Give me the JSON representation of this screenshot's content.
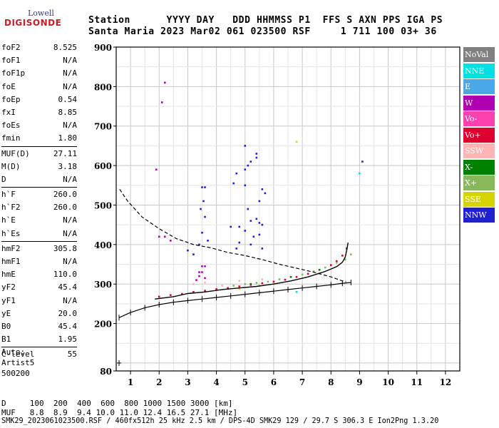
{
  "logo": {
    "top": "Lowell",
    "bottom": "DIGISONDE"
  },
  "header": {
    "line1": "Station      YYYY DAY   DDD HHMMSS P1  FFS S AXN PPS IGA PS",
    "line2": "Santa Maria 2023 Mar02 061 023500 RSF     1 711 100 03+ 36"
  },
  "params_groups": [
    [
      [
        "foF2",
        "8.525"
      ],
      [
        "foF1",
        "N/A"
      ],
      [
        "foF1p",
        "N/A"
      ],
      [
        "foE",
        "N/A"
      ],
      [
        "foEp",
        "0.54"
      ],
      [
        "fxI",
        "8.85"
      ],
      [
        "foEs",
        "N/A"
      ],
      [
        "fmin",
        "1.80"
      ]
    ],
    [
      [
        "MUF(D)",
        "27.11"
      ],
      [
        "M(D)",
        "3.18"
      ],
      [
        "D",
        "N/A"
      ]
    ],
    [
      [
        "h`F",
        "260.0"
      ],
      [
        "h`F2",
        "260.0"
      ],
      [
        "h`E",
        "N/A"
      ],
      [
        "h`Es",
        "N/A"
      ]
    ],
    [
      [
        "hmF2",
        "305.8"
      ],
      [
        "hmF1",
        "N/A"
      ],
      [
        "hmE",
        "110.0"
      ],
      [
        "yF2",
        "45.4"
      ],
      [
        "yF1",
        "N/A"
      ],
      [
        "yE",
        "20.0"
      ],
      [
        "B0",
        "45.4"
      ],
      [
        "B1",
        "1.95"
      ]
    ],
    [
      [
        "C-level",
        "55"
      ]
    ]
  ],
  "auto": {
    "l1": "Auto:",
    "l2": "Artist5",
    "l3": "500200"
  },
  "footer": {
    "d_line": "D     100  200  400  600  800 1000 1500 3000 [km]",
    "muf_line": "MUF   8.8  8.9  9.4 10.0 11.0 12.4 16.5 27.1 [MHz]",
    "file_line": "SMK29_2023061023500.RSF / 460fx512h 25 kHz 2.5 km / DPS-4D SMK29 129 / 29.7 S 306.3 E Ion2Png 1.3.20"
  },
  "legend": [
    {
      "label": "NoVal",
      "color": "#808080"
    },
    {
      "label": "NNE",
      "color": "#00e0e0"
    },
    {
      "label": "E",
      "color": "#4aa8e8"
    },
    {
      "label": "W",
      "color": "#b000b0"
    },
    {
      "label": "Vo-",
      "color": "#ff40b0"
    },
    {
      "label": "Vo+",
      "color": "#e00030"
    },
    {
      "label": "SSW",
      "color": "#ffb4b4"
    },
    {
      "label": "X-",
      "color": "#008000"
    },
    {
      "label": "X+",
      "color": "#88b858"
    },
    {
      "label": "SSE",
      "color": "#d4d400"
    },
    {
      "label": "NNW",
      "color": "#2020d0"
    }
  ],
  "chart_data": {
    "type": "scatter",
    "title": "",
    "xlabel": "",
    "ylabel": "",
    "xlim": [
      0.5,
      12.5
    ],
    "ylim": [
      80,
      900
    ],
    "x_ticks": [
      "1",
      "2",
      "3",
      "4",
      "5",
      "6",
      "7",
      "8",
      "9",
      "10",
      "11",
      "12"
    ],
    "y_ticks": [
      "80",
      "200",
      "300",
      "400",
      "500",
      "600",
      "700",
      "800",
      "900"
    ],
    "grid": true,
    "series": [
      {
        "name": "Vo+",
        "color": "#e00030",
        "points": [
          [
            2.0,
            268
          ],
          [
            2.4,
            272
          ],
          [
            2.8,
            275
          ],
          [
            3.2,
            280
          ],
          [
            3.6,
            283
          ],
          [
            4.0,
            287
          ],
          [
            4.4,
            290
          ],
          [
            4.8,
            294
          ],
          [
            5.2,
            298
          ],
          [
            5.6,
            302
          ],
          [
            6.0,
            306
          ],
          [
            6.4,
            311
          ],
          [
            6.8,
            318
          ],
          [
            7.2,
            326
          ],
          [
            7.6,
            336
          ],
          [
            8.0,
            348
          ],
          [
            8.2,
            358
          ],
          [
            8.4,
            372
          ],
          [
            8.55,
            390
          ]
        ]
      },
      {
        "name": "X+",
        "color": "#88b858",
        "points": [
          [
            4.6,
            296
          ],
          [
            5.0,
            300
          ],
          [
            5.4,
            303
          ],
          [
            5.8,
            306
          ],
          [
            6.2,
            312
          ],
          [
            6.6,
            318
          ],
          [
            7.0,
            324
          ],
          [
            7.4,
            332
          ],
          [
            7.8,
            342
          ],
          [
            8.2,
            354
          ],
          [
            8.5,
            362
          ],
          [
            8.7,
            375
          ]
        ]
      },
      {
        "name": "W",
        "color": "#b000b0",
        "points": [
          [
            2.0,
            420
          ],
          [
            2.2,
            420
          ],
          [
            2.4,
            410
          ],
          [
            3.3,
            310
          ],
          [
            3.4,
            330
          ],
          [
            3.5,
            345
          ],
          [
            3.6,
            345
          ],
          [
            3.5,
            330
          ],
          [
            3.4,
            320
          ],
          [
            3.6,
            315
          ],
          [
            2.1,
            760
          ],
          [
            2.2,
            810
          ],
          [
            1.9,
            590
          ]
        ]
      },
      {
        "name": "NNW",
        "color": "#2020d0",
        "points": [
          [
            3.5,
            430
          ],
          [
            3.6,
            470
          ],
          [
            3.55,
            510
          ],
          [
            3.5,
            545
          ],
          [
            3.6,
            545
          ],
          [
            3.45,
            490
          ],
          [
            3.4,
            400
          ],
          [
            3.7,
            410
          ],
          [
            3.0,
            385
          ],
          [
            3.2,
            375
          ],
          [
            4.6,
            555
          ],
          [
            4.7,
            580
          ],
          [
            5.0,
            590
          ],
          [
            5.1,
            600
          ],
          [
            5.2,
            610
          ],
          [
            5.4,
            620
          ],
          [
            5.0,
            550
          ],
          [
            5.1,
            490
          ],
          [
            5.2,
            460
          ],
          [
            5.4,
            465
          ],
          [
            5.5,
            455
          ],
          [
            5.6,
            450
          ],
          [
            5.0,
            435
          ],
          [
            5.3,
            420
          ],
          [
            5.5,
            425
          ],
          [
            4.8,
            405
          ],
          [
            5.2,
            400
          ],
          [
            5.6,
            390
          ],
          [
            4.5,
            445
          ],
          [
            4.8,
            445
          ],
          [
            4.7,
            390
          ],
          [
            5.6,
            540
          ],
          [
            5.7,
            530
          ],
          [
            5.5,
            510
          ],
          [
            9.1,
            610
          ],
          [
            5.0,
            650
          ],
          [
            5.4,
            630
          ]
        ]
      },
      {
        "name": "SSW",
        "color": "#ffb4b4",
        "points": [
          [
            3.2,
            300
          ],
          [
            3.6,
            304
          ],
          [
            4.2,
            296
          ],
          [
            4.8,
            308
          ],
          [
            5.6,
            312
          ]
        ]
      },
      {
        "name": "SSE",
        "color": "#d4d400",
        "points": [
          [
            4.8,
            288
          ],
          [
            5.5,
            296
          ],
          [
            6.0,
            300
          ],
          [
            6.8,
            660
          ]
        ]
      },
      {
        "name": "X-",
        "color": "#008000",
        "points": [
          [
            5.2,
            300
          ],
          [
            6.6,
            318
          ],
          [
            7.6,
            336
          ]
        ]
      },
      {
        "name": "NNE",
        "color": "#00e0e0",
        "points": [
          [
            6.8,
            280
          ],
          [
            9.0,
            580
          ]
        ]
      }
    ],
    "profile_curve": [
      [
        0.62,
        540
      ],
      [
        0.9,
        510
      ],
      [
        1.4,
        470
      ],
      [
        2.0,
        440
      ],
      [
        2.6,
        415
      ],
      [
        3.2,
        400
      ],
      [
        3.8,
        392
      ],
      [
        4.4,
        380
      ],
      [
        5.0,
        372
      ],
      [
        5.6,
        362
      ],
      [
        6.2,
        350
      ],
      [
        6.8,
        340
      ],
      [
        7.4,
        330
      ],
      [
        8.0,
        318
      ],
      [
        8.4,
        308
      ],
      [
        8.53,
        305.8
      ]
    ],
    "trace_line": [
      [
        1.85,
        262
      ],
      [
        2.5,
        268
      ],
      [
        3.0,
        276
      ],
      [
        3.6,
        280
      ],
      [
        4.2,
        286
      ],
      [
        4.8,
        290
      ],
      [
        5.4,
        294
      ],
      [
        6.0,
        300
      ],
      [
        6.6,
        308
      ],
      [
        7.2,
        318
      ],
      [
        7.8,
        332
      ],
      [
        8.2,
        344
      ],
      [
        8.4,
        355
      ],
      [
        8.5,
        368
      ],
      [
        8.55,
        385
      ],
      [
        8.6,
        405
      ]
    ],
    "true_height_curve": [
      [
        0.6,
        215
      ],
      [
        1.0,
        228
      ],
      [
        1.5,
        240
      ],
      [
        2.0,
        248
      ],
      [
        2.5,
        254
      ],
      [
        3.0,
        258
      ],
      [
        3.5,
        262
      ],
      [
        4.0,
        266
      ],
      [
        4.5,
        270
      ],
      [
        5.0,
        274
      ],
      [
        5.5,
        278
      ],
      [
        6.0,
        282
      ],
      [
        6.5,
        286
      ],
      [
        7.0,
        290
      ],
      [
        7.5,
        294
      ],
      [
        8.0,
        298
      ],
      [
        8.4,
        302
      ],
      [
        8.7,
        304
      ]
    ],
    "isolated_markers": [
      [
        0.6,
        100
      ]
    ]
  }
}
